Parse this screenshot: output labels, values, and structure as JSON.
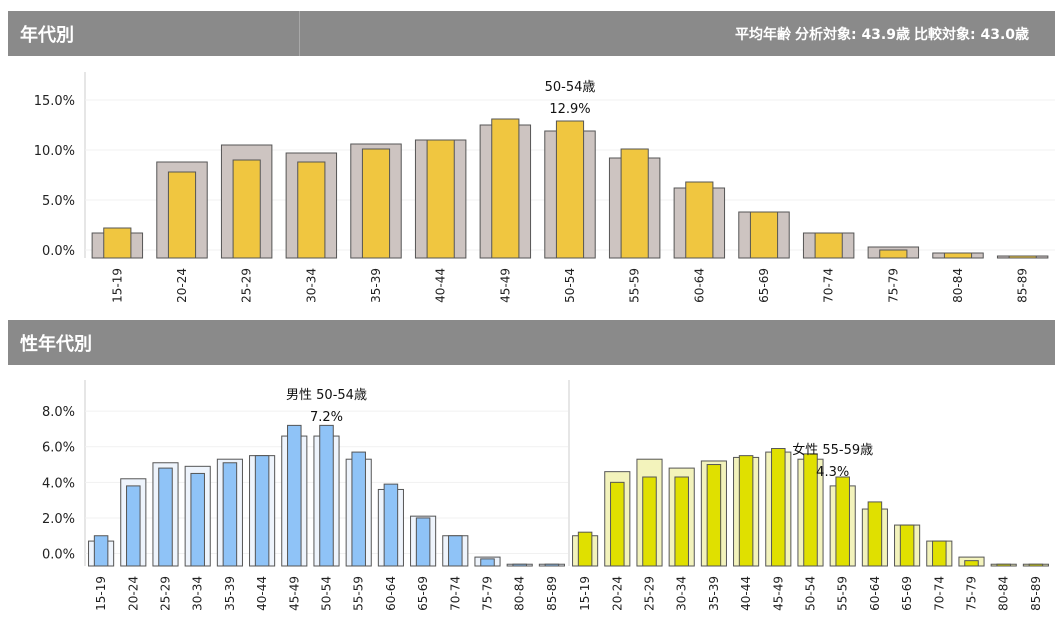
{
  "sections": {
    "age": {
      "title": "年代別"
    },
    "gender_age": {
      "title": "性年代別"
    }
  },
  "summary": {
    "label": "平均年齢",
    "analysis": "分析対象: 43.9歳",
    "compare": "比較対象: 43.0歳"
  },
  "colors": {
    "header_bg": "#8a8a8a",
    "all_analysis": "#f0c640",
    "all_compare": "#cdc4c1",
    "male_analysis": "#8fc3f7",
    "male_compare": "#eef4fc",
    "female_analysis": "#e0e000",
    "female_compare": "#f3f3bc",
    "bar_outline": "#555555"
  },
  "chart_data": [
    {
      "type": "bar",
      "title": "年代別",
      "categories": [
        "15-19",
        "20-24",
        "25-29",
        "30-34",
        "35-39",
        "40-44",
        "45-49",
        "50-54",
        "55-59",
        "60-64",
        "65-69",
        "70-74",
        "75-79",
        "80-84",
        "85-89"
      ],
      "series": [
        {
          "role": "compare",
          "values": [
            1.7,
            8.8,
            10.5,
            9.7,
            10.6,
            11.0,
            12.5,
            11.9,
            9.2,
            6.2,
            3.8,
            1.7,
            0.3,
            -0.3,
            -0.6
          ]
        },
        {
          "role": "analysis",
          "values": [
            2.2,
            7.8,
            9.0,
            8.8,
            10.1,
            11.0,
            13.1,
            12.9,
            10.1,
            6.8,
            3.8,
            1.7,
            0.0,
            -0.3,
            -0.6
          ]
        }
      ],
      "yticks": [
        "15.0%",
        "10.0%",
        "5.0%",
        "0.0%"
      ],
      "ylim": [
        -0.8,
        17
      ],
      "grid": true,
      "annotation": {
        "category": "50-54",
        "label": "50-54歳",
        "value_label": "12.9%"
      }
    },
    {
      "type": "bar",
      "title": "性年代別 男性",
      "categories": [
        "15-19",
        "20-24",
        "25-29",
        "30-34",
        "35-39",
        "40-44",
        "45-49",
        "50-54",
        "55-59",
        "60-64",
        "65-69",
        "70-74",
        "75-79",
        "80-84",
        "85-89"
      ],
      "series": [
        {
          "role": "compare",
          "values": [
            0.7,
            4.2,
            5.1,
            4.9,
            5.3,
            5.5,
            6.6,
            6.6,
            5.3,
            3.6,
            2.1,
            1.0,
            -0.2,
            -0.6,
            -0.6
          ]
        },
        {
          "role": "analysis",
          "values": [
            1.0,
            3.8,
            4.8,
            4.5,
            5.1,
            5.5,
            7.2,
            7.2,
            5.7,
            3.9,
            2.0,
            1.0,
            -0.3,
            -0.6,
            -0.6
          ]
        }
      ],
      "yticks": [
        "8.0%",
        "6.0%",
        "4.0%",
        "2.0%",
        "0.0%"
      ],
      "ylim": [
        -0.7,
        9.3
      ],
      "grid": true,
      "annotation": {
        "category": "50-54",
        "label": "男性 50-54歳",
        "value_label": "7.2%"
      }
    },
    {
      "type": "bar",
      "title": "性年代別 女性",
      "categories": [
        "15-19",
        "20-24",
        "25-29",
        "30-34",
        "35-39",
        "40-44",
        "45-49",
        "50-54",
        "55-59",
        "60-64",
        "65-69",
        "70-74",
        "75-79",
        "80-84",
        "85-89"
      ],
      "series": [
        {
          "role": "compare",
          "values": [
            1.0,
            4.6,
            5.3,
            4.8,
            5.2,
            5.4,
            5.7,
            5.3,
            3.8,
            2.5,
            1.6,
            0.7,
            -0.2,
            -0.6,
            -0.6
          ]
        },
        {
          "role": "analysis",
          "values": [
            1.2,
            4.0,
            4.3,
            4.3,
            5.0,
            5.5,
            5.9,
            5.6,
            4.3,
            2.9,
            1.6,
            0.7,
            -0.4,
            -0.6,
            -0.6
          ]
        }
      ],
      "ylim": [
        -0.7,
        9.3
      ],
      "grid": true,
      "annotation": {
        "category": "55-59",
        "label": "女性 55-59歳",
        "value_label": "4.3%"
      }
    }
  ]
}
